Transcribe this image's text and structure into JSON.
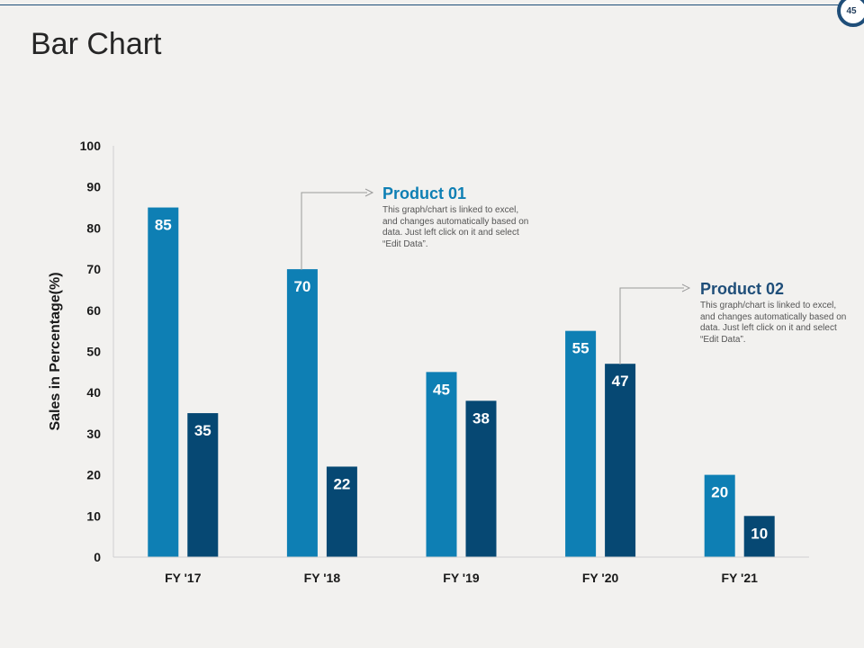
{
  "slide": {
    "title": "Bar Chart",
    "page_number": "45"
  },
  "colors": {
    "product_01": "#0e7fb4",
    "product_02": "#064873",
    "callout_01_title": "#0e7fb4",
    "callout_02_title": "#1f4e79"
  },
  "callouts": [
    {
      "title": "Product 01",
      "text": "This graph/chart is linked to excel, and changes automatically based on data. Just left click on it and select “Edit Data”."
    },
    {
      "title": "Product 02",
      "text": "This graph/chart is linked to excel, and changes automatically based on data. Just left click on it and select “Edit Data”."
    }
  ],
  "chart_data": {
    "type": "bar",
    "categories": [
      "FY '17",
      "FY '18",
      "FY '19",
      "FY '20",
      "FY '21"
    ],
    "series": [
      {
        "name": "Product 01",
        "values": [
          85,
          70,
          45,
          55,
          20
        ]
      },
      {
        "name": "Product 02",
        "values": [
          35,
          22,
          38,
          47,
          10
        ]
      }
    ],
    "ylabel": "Sales in Percentage(%)",
    "xlabel": "",
    "ylim": [
      0,
      100
    ],
    "yticks": [
      0,
      10,
      20,
      30,
      40,
      50,
      60,
      70,
      80,
      90,
      100
    ],
    "grid": false,
    "data_labels": true,
    "legend": "callouts"
  }
}
